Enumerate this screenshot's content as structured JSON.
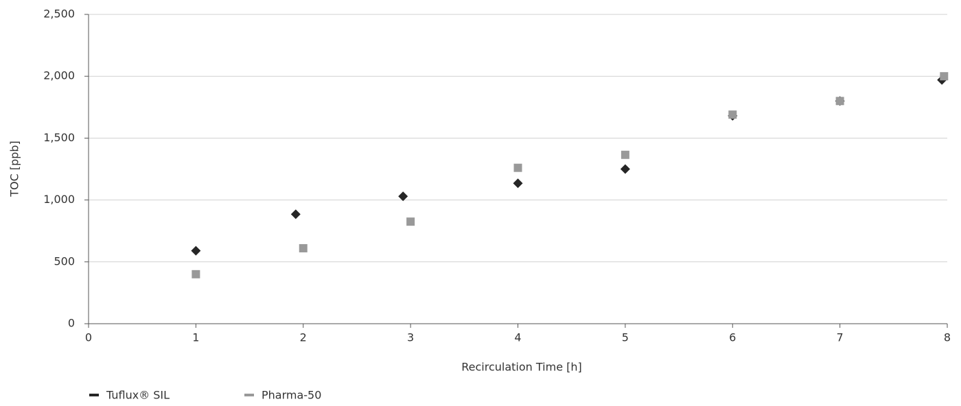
{
  "chart_data": {
    "type": "scatter",
    "x_label": "Recirculation Time [h]",
    "y_label": "TOC [ppb]",
    "series": [
      {
        "name": "Tuflux® SIL",
        "color": "#262626",
        "marker": "diamond",
        "x": [
          1,
          1.93,
          2.93,
          4,
          5,
          6,
          7,
          7.95
        ],
        "values": [
          590,
          885,
          1030,
          1135,
          1250,
          1680,
          1800,
          1970
        ]
      },
      {
        "name": "Pharma-50",
        "color": "#999999",
        "marker": "square",
        "x": [
          1,
          2,
          3,
          4,
          5,
          6,
          7,
          7.97
        ],
        "values": [
          400,
          610,
          825,
          1260,
          1365,
          1690,
          1800,
          2000
        ]
      }
    ],
    "xlim": [
      0,
      8
    ],
    "xticks": [
      0,
      1,
      2,
      3,
      4,
      5,
      6,
      7,
      8
    ],
    "ylim": [
      0,
      2500
    ],
    "yticks": [
      0,
      500,
      {
        "value": 1000,
        "label": "1,000"
      },
      {
        "value": 1500,
        "label": "1,500"
      },
      {
        "value": 2000,
        "label": "2,000"
      },
      {
        "value": 2500,
        "label": "2,500"
      }
    ],
    "grid": true,
    "legend": "bottom-left"
  }
}
